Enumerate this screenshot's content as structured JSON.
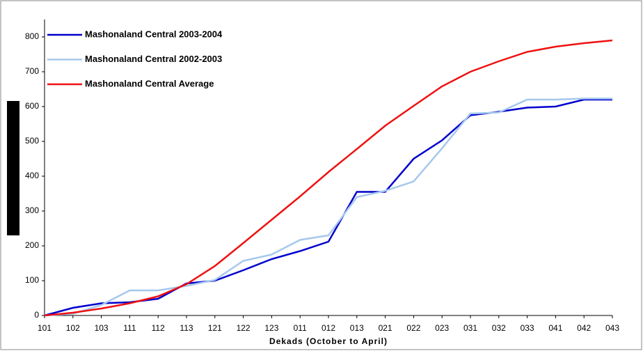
{
  "chart_data": {
    "type": "line",
    "x_label": "Dekads (October to April)",
    "categories": [
      "101",
      "102",
      "103",
      "111",
      "112",
      "113",
      "121",
      "122",
      "123",
      "011",
      "012",
      "013",
      "021",
      "022",
      "023",
      "031",
      "032",
      "033",
      "041",
      "042",
      "043"
    ],
    "series": [
      {
        "name": "Mashonaland Central  2003-2004",
        "color": "#0000cc",
        "values": [
          0,
          22,
          35,
          38,
          48,
          92,
          100,
          130,
          162,
          185,
          212,
          355,
          355,
          450,
          503,
          575,
          585,
          597,
          600,
          620,
          620
        ]
      },
      {
        "name": "Mashonaland Central  2002-2003",
        "color": "#a6c8ee",
        "values": [
          0,
          5,
          30,
          72,
          72,
          85,
          102,
          157,
          175,
          217,
          230,
          340,
          358,
          385,
          480,
          580,
          583,
          620,
          620,
          623,
          623
        ]
      },
      {
        "name": "Mashonaland Central  Average",
        "color": "#ee1111",
        "values": [
          0,
          8,
          20,
          35,
          55,
          90,
          142,
          208,
          275,
          342,
          412,
          478,
          545,
          602,
          658,
          700,
          730,
          757,
          772,
          782,
          790
        ]
      }
    ],
    "ylim": [
      0,
      850
    ],
    "yticks": [
      0,
      100,
      200,
      300,
      400,
      500,
      600,
      700,
      800
    ],
    "grid": false,
    "legend": "top-left"
  }
}
